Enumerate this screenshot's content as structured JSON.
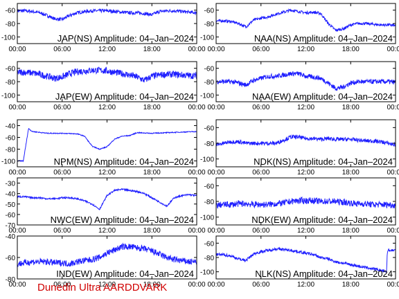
{
  "footer": "Dunedin Ultra AARDDVARK",
  "colors": {
    "trace": "#1f1fff",
    "footer": "#d00000"
  },
  "chart_data": [
    {
      "type": "line",
      "title": "JAP(NS) Amplitude: 04–Jan–2024",
      "ylim": [
        -110,
        -50
      ],
      "yticks": [
        -60,
        -80,
        -100
      ],
      "xticks": [
        "00:00",
        "06:00",
        "12:00",
        "18:00",
        "00:00"
      ],
      "x": [
        0,
        1,
        2,
        3,
        4,
        5,
        6,
        7,
        8,
        9,
        10,
        11,
        12,
        13,
        14,
        15,
        16,
        17,
        18,
        19,
        20,
        21,
        22,
        23,
        24
      ],
      "noise": 5,
      "values": [
        -61,
        -61,
        -62,
        -64,
        -68,
        -73,
        -74,
        -68,
        -64,
        -62,
        -61,
        -61,
        -61,
        -62,
        -63,
        -64,
        -64,
        -65,
        -67,
        -62,
        -61,
        -61,
        -62,
        -63,
        -64
      ]
    },
    {
      "type": "line",
      "title": "NAA(NS) Amplitude: 04–Jan–2024",
      "ylim": [
        -110,
        -50
      ],
      "yticks": [
        -60,
        -80,
        -100
      ],
      "xticks": [
        "00:00",
        "06:00",
        "12:00",
        "18:00",
        "00:00"
      ],
      "x": [
        0,
        1,
        2,
        3,
        4,
        5,
        6,
        7,
        8,
        9,
        10,
        11,
        12,
        13,
        14,
        15,
        16,
        17,
        18,
        19,
        20,
        21,
        22,
        23,
        24
      ],
      "noise": 4,
      "values": [
        -76,
        -76,
        -77,
        -80,
        -85,
        -75,
        -72,
        -70,
        -66,
        -63,
        -60,
        -62,
        -64,
        -63,
        -65,
        -80,
        -90,
        -88,
        -82,
        -80,
        -80,
        -81,
        -82,
        -82,
        -83
      ]
    },
    {
      "type": "line",
      "title": "JAP(EW) Amplitude: 04–Jan–2024",
      "ylim": [
        -110,
        -50
      ],
      "yticks": [
        -60,
        -80,
        -100
      ],
      "xticks": [
        "00:00",
        "06:00",
        "12:00",
        "18:00",
        "00:00"
      ],
      "x": [
        0,
        1,
        2,
        3,
        4,
        5,
        6,
        7,
        8,
        9,
        10,
        11,
        12,
        13,
        14,
        15,
        16,
        17,
        18,
        19,
        20,
        21,
        22,
        23,
        24
      ],
      "noise": 10,
      "values": [
        -66,
        -66,
        -67,
        -69,
        -72,
        -75,
        -73,
        -68,
        -65,
        -64,
        -63,
        -63,
        -64,
        -66,
        -68,
        -70,
        -73,
        -78,
        -72,
        -70,
        -69,
        -69,
        -70,
        -71,
        -71
      ]
    },
    {
      "type": "line",
      "title": "NAA(EW) Amplitude: 04–Jan–2024",
      "ylim": [
        -110,
        -50
      ],
      "yticks": [
        -60,
        -80,
        -100
      ],
      "xticks": [
        "00:00",
        "06:00",
        "12:00",
        "18:00",
        "00:00"
      ],
      "x": [
        0,
        1,
        2,
        3,
        4,
        5,
        6,
        7,
        8,
        9,
        10,
        11,
        12,
        13,
        14,
        15,
        16,
        17,
        18,
        19,
        20,
        21,
        22,
        23,
        24
      ],
      "noise": 7,
      "values": [
        -80,
        -80,
        -80,
        -82,
        -85,
        -78,
        -75,
        -72,
        -72,
        -70,
        -68,
        -68,
        -72,
        -73,
        -75,
        -82,
        -90,
        -88,
        -82,
        -80,
        -80,
        -80,
        -80,
        -80,
        -81
      ]
    },
    {
      "type": "line",
      "title": "NPM(NS) Amplitude: 04–Jan–2024",
      "ylim": [
        -110,
        -30
      ],
      "yticks": [
        -40,
        -60,
        -80,
        -100
      ],
      "xticks": [
        "00:00",
        "06:00",
        "12:00",
        "18:00",
        "00:00"
      ],
      "x": [
        0,
        0.8,
        1.5,
        2,
        4,
        6,
        8,
        9,
        10,
        11,
        12,
        13,
        14,
        15,
        16,
        18,
        20,
        22,
        24
      ],
      "noise": 1.5,
      "values": [
        -100,
        -100,
        -45,
        -50,
        -53,
        -53,
        -54,
        -58,
        -75,
        -80,
        -76,
        -63,
        -58,
        -57,
        -52,
        -53,
        -52,
        -51,
        -50
      ]
    },
    {
      "type": "line",
      "title": "NDK(NS) Amplitude: 04–Jan–2024",
      "ylim": [
        -110,
        -50
      ],
      "yticks": [
        -60,
        -80,
        -100
      ],
      "xticks": [
        "00:00",
        "06:00",
        "12:00",
        "18:00",
        "00:00"
      ],
      "x": [
        0,
        1,
        2,
        3,
        4,
        5,
        6,
        7,
        8,
        9,
        10,
        11,
        12,
        13,
        14,
        15,
        16,
        17,
        18,
        19,
        20,
        21,
        22,
        23,
        24
      ],
      "noise": 5,
      "values": [
        -82,
        -80,
        -78,
        -78,
        -80,
        -80,
        -80,
        -80,
        -80,
        -76,
        -72,
        -72,
        -74,
        -74,
        -75,
        -74,
        -75,
        -75,
        -75,
        -76,
        -77,
        -77,
        -78,
        -80,
        -82
      ]
    },
    {
      "type": "line",
      "title": "NWC(EW) Amplitude: 04–Jan–2024",
      "ylim": [
        -70,
        -25
      ],
      "yticks": [
        -30,
        -40,
        -50,
        -60,
        -70
      ],
      "xticks": [
        "00:00",
        "06:00",
        "12:00",
        "18:00",
        "00:00"
      ],
      "x": [
        0,
        1,
        2,
        3,
        4,
        5,
        6,
        7,
        8,
        9,
        10,
        11,
        12,
        13,
        14,
        15,
        16,
        17,
        18,
        19,
        20,
        21,
        22,
        23,
        24
      ],
      "noise": 1.5,
      "values": [
        -43,
        -43,
        -44,
        -44,
        -45,
        -45,
        -44,
        -44,
        -45,
        -47,
        -50,
        -55,
        -42,
        -37,
        -36,
        -37,
        -38,
        -40,
        -44,
        -48,
        -52,
        -44,
        -42,
        -41,
        -42
      ]
    },
    {
      "type": "line",
      "title": "NDK(EW) Amplitude: 04–Jan–2024",
      "ylim": [
        -110,
        -50
      ],
      "yticks": [
        -60,
        -80,
        -100
      ],
      "xticks": [
        "00:00",
        "06:00",
        "12:00",
        "18:00",
        "00:00"
      ],
      "x": [
        0,
        1,
        2,
        3,
        4,
        5,
        6,
        7,
        8,
        9,
        10,
        11,
        12,
        13,
        14,
        15,
        16,
        17,
        18,
        19,
        20,
        21,
        22,
        23,
        24
      ],
      "noise": 8,
      "values": [
        -85,
        -84,
        -84,
        -83,
        -83,
        -84,
        -84,
        -84,
        -83,
        -82,
        -80,
        -79,
        -79,
        -79,
        -80,
        -80,
        -80,
        -81,
        -82,
        -83,
        -83,
        -84,
        -84,
        -84,
        -85
      ]
    },
    {
      "type": "line",
      "title": "IND(EW) Amplitude: 04–Jan–2024",
      "ylim": [
        -80,
        -40
      ],
      "yticks": [
        -40,
        -60,
        -80
      ],
      "xticks": [
        "00:00",
        "06:00",
        "12:00",
        "18:00",
        "00:00"
      ],
      "x": [
        0,
        1,
        2,
        3,
        4,
        5,
        6,
        7,
        8,
        9,
        10,
        11,
        12,
        13,
        14,
        15,
        16,
        17,
        18,
        19,
        20,
        21,
        22,
        23,
        24
      ],
      "noise": 6,
      "values": [
        -66,
        -65,
        -64,
        -64,
        -64,
        -65,
        -65,
        -66,
        -64,
        -63,
        -62,
        -60,
        -56,
        -53,
        -50,
        -50,
        -51,
        -52,
        -54,
        -57,
        -60,
        -62,
        -63,
        -64,
        -64
      ]
    },
    {
      "type": "line",
      "title": "NLK(NS) Amplitude: 04–Jan–2024",
      "ylim": [
        -110,
        -50
      ],
      "yticks": [
        -60,
        -80,
        -100
      ],
      "xticks": [
        "00:00",
        "06:00",
        "12:00",
        "18:00",
        "00:00"
      ],
      "x": [
        0,
        1,
        2,
        3,
        4,
        5,
        6,
        7,
        8,
        9,
        10,
        11,
        12,
        13,
        14,
        15,
        16,
        17,
        18,
        19,
        20,
        21,
        22,
        22.8,
        22.9,
        23,
        24
      ],
      "noise": 4,
      "values": [
        -76,
        -76,
        -78,
        -82,
        -84,
        -75,
        -72,
        -70,
        -68,
        -69,
        -70,
        -72,
        -74,
        -76,
        -80,
        -82,
        -86,
        -88,
        -90,
        -92,
        -94,
        -96,
        -98,
        -100,
        -72,
        -70,
        -70
      ]
    }
  ]
}
